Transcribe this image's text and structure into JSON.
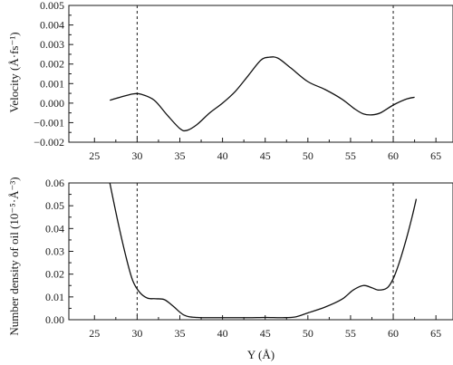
{
  "chart_data": [
    {
      "type": "line",
      "title": "",
      "xlabel": "",
      "ylabel": "Velocity (Å·fs⁻¹)",
      "xlim": [
        22,
        67
      ],
      "ylim": [
        -0.002,
        0.005
      ],
      "x_ticks": [
        25,
        30,
        35,
        40,
        45,
        50,
        55,
        60,
        65
      ],
      "x_tick_labels": [
        "25",
        "30",
        "35",
        "40",
        "45",
        "50",
        "55",
        "60",
        "65"
      ],
      "y_ticks": [
        -0.002,
        -0.001,
        0.0,
        0.001,
        0.002,
        0.003,
        0.004,
        0.005
      ],
      "y_tick_labels": [
        "−0.002",
        "−0.001",
        "0.000",
        "0.001",
        "0.002",
        "0.003",
        "0.004",
        "0.005"
      ],
      "grid": false,
      "vlines": [
        30,
        60
      ],
      "series": [
        {
          "x": [
            26.8,
            28,
            29.5,
            30.5,
            32,
            33.5,
            35,
            35.8,
            37,
            38.5,
            40,
            41.5,
            43,
            44.5,
            45.5,
            46.5,
            48,
            50,
            52,
            54,
            55.5,
            56.5,
            57.5,
            58.5,
            60,
            61.5,
            62.5
          ],
          "y": [
            0.00015,
            0.0003,
            0.00047,
            0.00045,
            0.00015,
            -0.0006,
            -0.0013,
            -0.0014,
            -0.0011,
            -0.0005,
            0.0,
            0.0006,
            0.0014,
            0.0022,
            0.00235,
            0.0023,
            0.0018,
            0.0011,
            0.0007,
            0.0002,
            -0.0003,
            -0.00055,
            -0.0006,
            -0.0005,
            -0.0001,
            0.0002,
            0.0003
          ]
        }
      ]
    },
    {
      "type": "line",
      "title": "",
      "xlabel": "Y (Å)",
      "ylabel": "Number density of oil (10⁻⁵·Å⁻³)",
      "xlim": [
        22,
        67
      ],
      "ylim": [
        0.0,
        0.06
      ],
      "x_ticks": [
        25,
        30,
        35,
        40,
        45,
        50,
        55,
        60,
        65
      ],
      "x_tick_labels": [
        "25",
        "30",
        "35",
        "40",
        "45",
        "50",
        "55",
        "60",
        "65"
      ],
      "y_ticks": [
        0.0,
        0.01,
        0.02,
        0.03,
        0.04,
        0.05,
        0.06
      ],
      "y_tick_labels": [
        "0.00",
        "0.01",
        "0.02",
        "0.03",
        "0.04",
        "0.05",
        "0.06"
      ],
      "grid": false,
      "vlines": [
        30,
        60
      ],
      "series": [
        {
          "x": [
            26.8,
            27.8,
            28.8,
            29.5,
            30.3,
            31.2,
            32.2,
            33.2,
            34.2,
            35.5,
            37,
            40,
            43,
            45,
            47,
            48.5,
            50,
            52,
            54,
            55.3,
            56.5,
            57.5,
            58.3,
            59.3,
            60,
            60.7,
            61.5,
            62.2,
            62.7
          ],
          "y": [
            0.06,
            0.042,
            0.026,
            0.017,
            0.012,
            0.0095,
            0.0092,
            0.0088,
            0.006,
            0.002,
            0.001,
            0.0009,
            0.0009,
            0.001,
            0.0009,
            0.0012,
            0.003,
            0.0055,
            0.009,
            0.013,
            0.015,
            0.014,
            0.013,
            0.014,
            0.018,
            0.025,
            0.035,
            0.045,
            0.053
          ]
        }
      ]
    }
  ]
}
